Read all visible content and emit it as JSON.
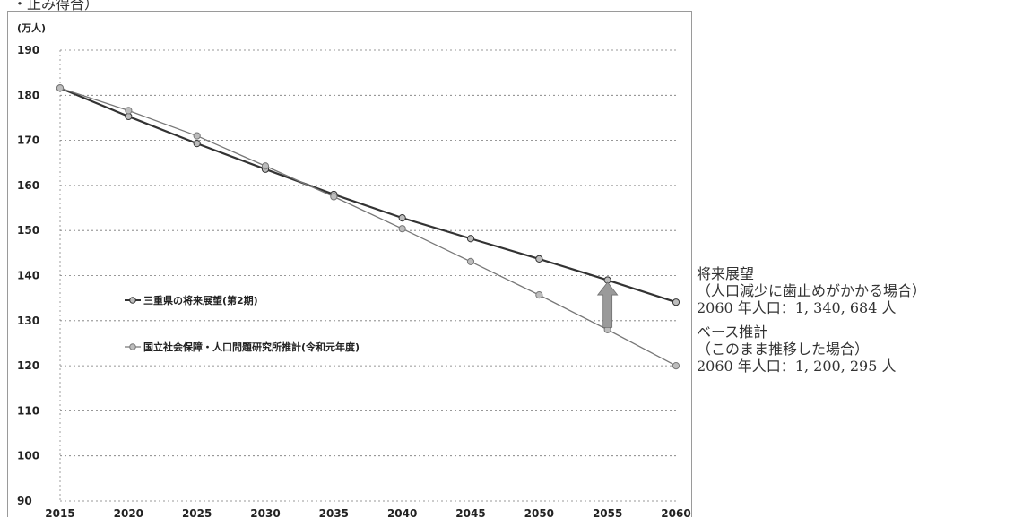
{
  "header_fragment": "・止み得合）",
  "chart_data": {
    "type": "line",
    "y_unit_label": "(万人)",
    "x": [
      2015,
      2020,
      2025,
      2030,
      2035,
      2040,
      2045,
      2050,
      2055,
      2060
    ],
    "ylim": [
      90,
      190
    ],
    "y_ticks": [
      90,
      100,
      110,
      120,
      130,
      140,
      150,
      160,
      170,
      180,
      190
    ],
    "grid": true,
    "legend_placement": "inside-left",
    "series": [
      {
        "name": "三重県の将来展望(第2期)",
        "values": [
          181.6,
          175.3,
          169.3,
          163.6,
          158.0,
          152.8,
          148.2,
          143.7,
          139.0,
          134.1
        ],
        "color": "#333333"
      },
      {
        "name": "国立社会保障・人口問題研究所推計(令和元年度)",
        "values": [
          181.6,
          176.6,
          171.0,
          164.3,
          157.5,
          150.4,
          143.1,
          135.7,
          128.0,
          120.0
        ],
        "color": "#777777"
      }
    ],
    "annotation": {
      "type": "up-arrow",
      "x": 2055,
      "from": 128.5,
      "to": 138.5,
      "color": "#9a9a9a"
    }
  },
  "notes": [
    {
      "title": "将来展望",
      "subtitle": "（人口減少に歯止めがかかる場合）",
      "value": "2060 年人口：1, 340, 684 人"
    },
    {
      "title": "ベース推計",
      "subtitle": "（このまま推移した場合）",
      "value": "2060 年人口：1, 200, 295 人"
    }
  ]
}
